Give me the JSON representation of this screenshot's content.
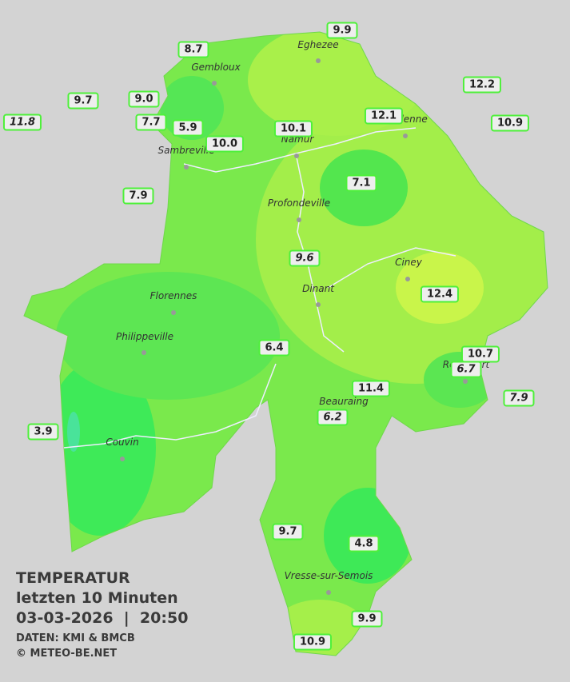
{
  "header": {
    "title": "TEMPERATUR",
    "subtitle": "letzten 10 Minuten",
    "timestamp": "03-03-2026  |  20:50",
    "source": "DATEN: KMI & BMCB",
    "copyright": "© METEO-BE.NET"
  },
  "places": [
    "Eghezee",
    "Gembloux",
    "Andenne",
    "Namur",
    "Sambreville",
    "Profondeville",
    "Ciney",
    "Dinant",
    "Florennes",
    "Philippeville",
    "Rochefort",
    "Beauraing",
    "Couvin",
    "Vresse-sur-Semois"
  ],
  "readings": [
    {
      "label": "9.9"
    },
    {
      "label": "8.7"
    },
    {
      "label": "12.2"
    },
    {
      "label": "9.7"
    },
    {
      "label": "9.0"
    },
    {
      "label": "11.8",
      "italic": true
    },
    {
      "label": "7.7"
    },
    {
      "label": "5.9"
    },
    {
      "label": "12.1"
    },
    {
      "label": "10.1"
    },
    {
      "label": "10.9"
    },
    {
      "label": "10.0"
    },
    {
      "label": "7.9"
    },
    {
      "label": "7.1"
    },
    {
      "label": "9.6",
      "italic": true
    },
    {
      "label": "12.4"
    },
    {
      "label": "6.4"
    },
    {
      "label": "10.7"
    },
    {
      "label": "6.7",
      "italic": true
    },
    {
      "label": "11.4"
    },
    {
      "label": "7.9",
      "italic": true
    },
    {
      "label": "6.2",
      "italic": true
    },
    {
      "label": "3.9"
    },
    {
      "label": "9.7"
    },
    {
      "label": "4.8"
    },
    {
      "label": "9.9"
    },
    {
      "label": "10.9"
    }
  ]
}
